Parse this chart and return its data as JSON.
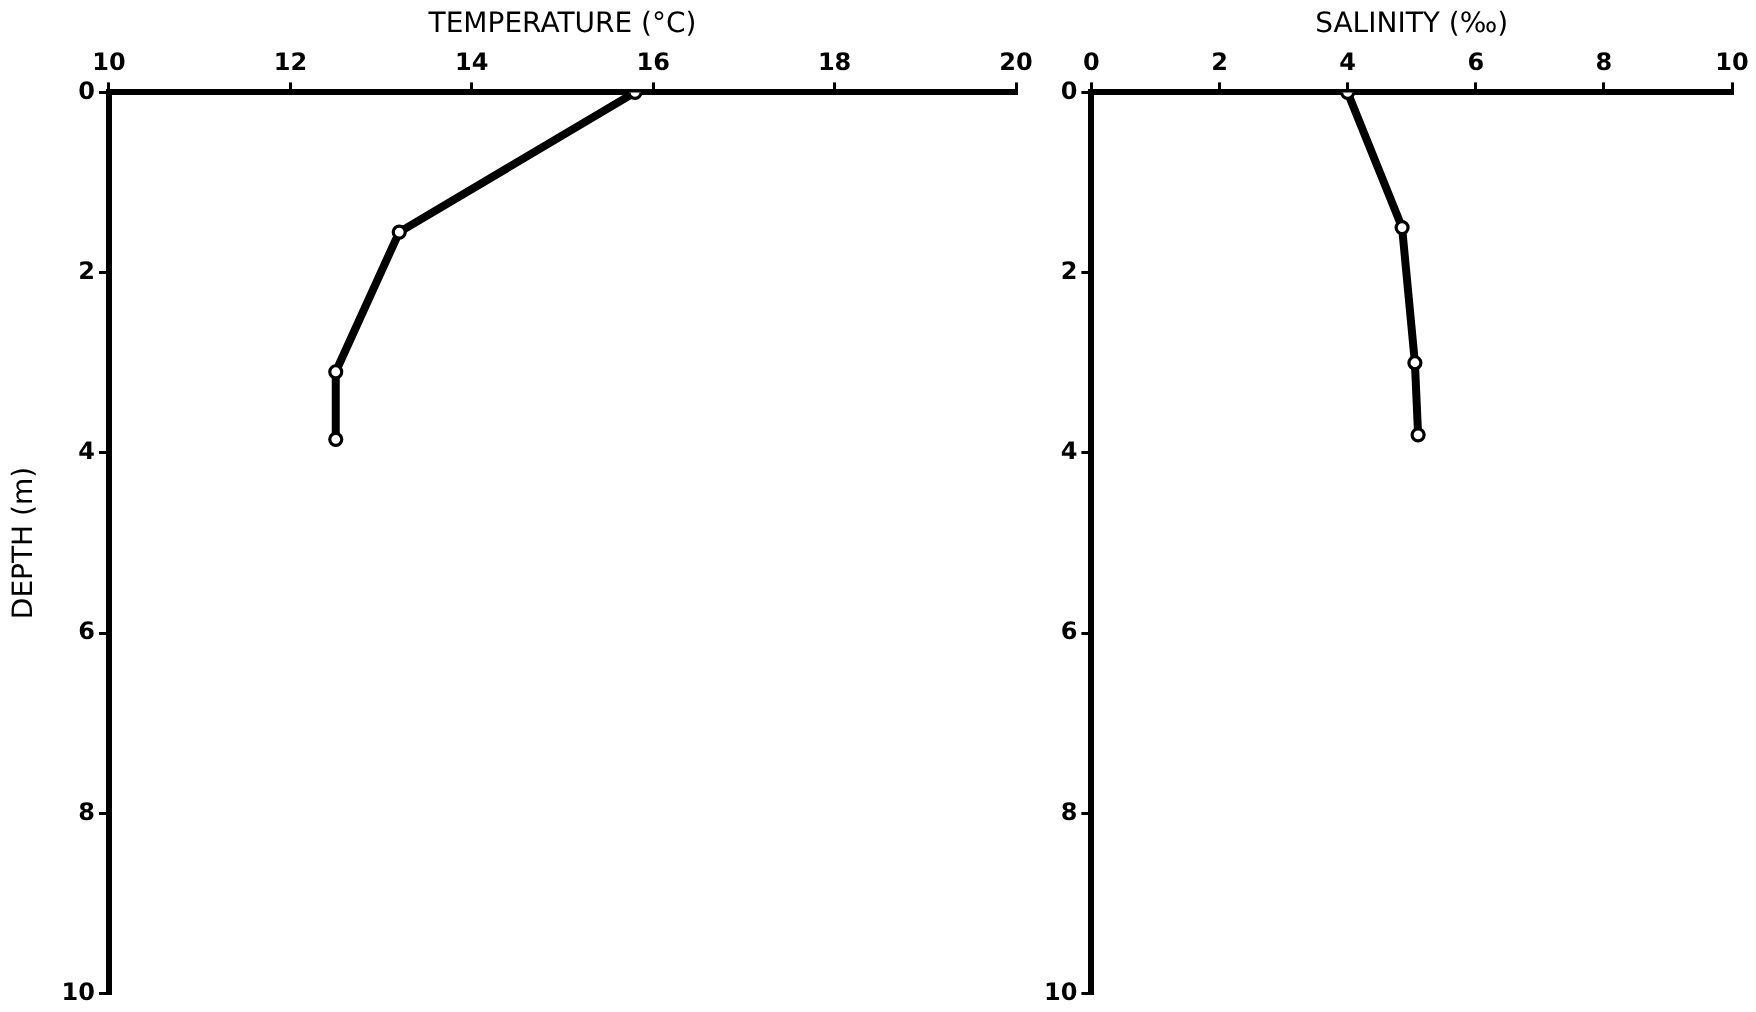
{
  "chart_data": [
    {
      "type": "line",
      "xlabel": "TEMPERATURE (°C)",
      "ylabel": "DEPTH (m)",
      "series": [
        {
          "color": "#000000",
          "x": [
            15.8,
            13.2,
            12.5,
            12.5
          ],
          "values": [
            0,
            1.55,
            3.1,
            3.85
          ]
        }
      ],
      "xlim": [
        10,
        20
      ],
      "xticks": [
        10,
        12,
        14,
        16,
        18,
        20
      ],
      "ylim": [
        10,
        0
      ],
      "yticks": [
        0,
        2,
        4,
        6,
        8,
        10
      ],
      "marker": "circle",
      "line_style": "solid"
    },
    {
      "type": "line",
      "xlabel": "SALINITY (‰)",
      "series": [
        {
          "color": "#000000",
          "x": [
            4.0,
            4.85,
            5.05,
            5.1
          ],
          "values": [
            0,
            1.5,
            3.0,
            3.8
          ]
        }
      ],
      "xlim": [
        0,
        10
      ],
      "xticks": [
        0,
        2,
        4,
        6,
        8,
        10
      ],
      "ylim": [
        10,
        0
      ],
      "yticks": [
        0,
        2,
        4,
        6,
        8,
        10
      ],
      "marker": "circle",
      "line_style": "solid"
    }
  ]
}
